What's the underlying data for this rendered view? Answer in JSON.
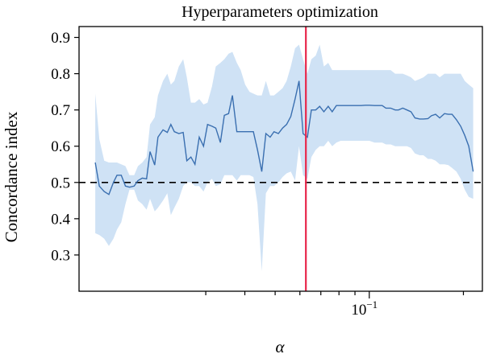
{
  "chart_data": {
    "type": "line",
    "title": "Hyperparameters optimization",
    "xlabel": "α",
    "ylabel": "Concordance index",
    "xscale": "log",
    "xlim": [
      0.0118,
      0.23
    ],
    "ylim": [
      0.2,
      0.93
    ],
    "yticks": [
      0.3,
      0.4,
      0.5,
      0.6,
      0.7,
      0.8,
      0.9
    ],
    "ytick_labels": [
      "0.3",
      "0.4",
      "0.5",
      "0.6",
      "0.7",
      "0.8",
      "0.9"
    ],
    "xticks_minor": [
      0.03,
      0.04,
      0.05,
      0.06,
      0.07,
      0.08,
      0.09,
      0.2
    ],
    "xticks_major": [
      0.1
    ],
    "xtick_major_labels": [
      "10^-1"
    ],
    "grid": false,
    "series": [
      {
        "x": [
          0.0133,
          0.0137,
          0.0142,
          0.0147,
          0.0152,
          0.0156,
          0.0161,
          0.0166,
          0.0171,
          0.0177,
          0.0182,
          0.0188,
          0.0194,
          0.0199,
          0.0206,
          0.0211,
          0.0219,
          0.0226,
          0.0232,
          0.0238,
          0.0246,
          0.0254,
          0.0261,
          0.0269,
          0.0277,
          0.0286,
          0.0295,
          0.0304,
          0.0314,
          0.0323,
          0.0334,
          0.0344,
          0.0355,
          0.0365,
          0.0377,
          0.0388,
          0.0401,
          0.0414,
          0.0426,
          0.0439,
          0.0453,
          0.0467,
          0.0482,
          0.0496,
          0.0512,
          0.0528,
          0.0544,
          0.0561,
          0.0579,
          0.0596,
          0.0614,
          0.0634,
          0.0653,
          0.0674,
          0.0694,
          0.0716,
          0.0739,
          0.0761,
          0.0785,
          0.081,
          0.0835,
          0.0859,
          0.0887,
          0.0914,
          0.0942,
          0.0972,
          0.1,
          0.104,
          0.107,
          0.11,
          0.113,
          0.117,
          0.121,
          0.124,
          0.128,
          0.132,
          0.136,
          0.14,
          0.145,
          0.149,
          0.154,
          0.158,
          0.163,
          0.168,
          0.174,
          0.179,
          0.184,
          0.19,
          0.196,
          0.202,
          0.208,
          0.215
        ],
        "mean": [
          0.555,
          0.49,
          0.475,
          0.467,
          0.5,
          0.52,
          0.52,
          0.49,
          0.487,
          0.49,
          0.505,
          0.512,
          0.51,
          0.585,
          0.548,
          0.625,
          0.645,
          0.638,
          0.66,
          0.64,
          0.635,
          0.638,
          0.56,
          0.57,
          0.55,
          0.625,
          0.6,
          0.66,
          0.655,
          0.65,
          0.61,
          0.685,
          0.69,
          0.74,
          0.64,
          0.64,
          0.64,
          0.64,
          0.64,
          0.59,
          0.53,
          0.635,
          0.625,
          0.64,
          0.635,
          0.65,
          0.66,
          0.682,
          0.73,
          0.78,
          0.635,
          0.625,
          0.7,
          0.7,
          0.71,
          0.695,
          0.71,
          0.695,
          0.712,
          0.712,
          0.712,
          0.712,
          0.712,
          0.712,
          0.712,
          0.713,
          0.713,
          0.712,
          0.712,
          0.712,
          0.705,
          0.705,
          0.7,
          0.7,
          0.705,
          0.7,
          0.695,
          0.678,
          0.675,
          0.675,
          0.676,
          0.684,
          0.688,
          0.678,
          0.69,
          0.688,
          0.688,
          0.673,
          0.655,
          0.63,
          0.6,
          0.53
        ],
        "lower": [
          0.36,
          0.355,
          0.345,
          0.325,
          0.345,
          0.37,
          0.39,
          0.44,
          0.48,
          0.48,
          0.45,
          0.44,
          0.425,
          0.455,
          0.42,
          0.43,
          0.45,
          0.47,
          0.41,
          0.43,
          0.455,
          0.49,
          0.5,
          0.5,
          0.49,
          0.49,
          0.475,
          0.5,
          0.51,
          0.49,
          0.495,
          0.52,
          0.52,
          0.52,
          0.505,
          0.52,
          0.52,
          0.52,
          0.515,
          0.44,
          0.255,
          0.47,
          0.49,
          0.49,
          0.5,
          0.515,
          0.525,
          0.53,
          0.505,
          0.6,
          0.52,
          0.51,
          0.57,
          0.59,
          0.6,
          0.6,
          0.615,
          0.6,
          0.61,
          0.615,
          0.615,
          0.615,
          0.615,
          0.615,
          0.615,
          0.615,
          0.615,
          0.61,
          0.61,
          0.61,
          0.605,
          0.605,
          0.6,
          0.6,
          0.6,
          0.6,
          0.595,
          0.58,
          0.575,
          0.575,
          0.565,
          0.565,
          0.56,
          0.55,
          0.55,
          0.548,
          0.54,
          0.53,
          0.51,
          0.48,
          0.46,
          0.455
        ],
        "upper": [
          0.745,
          0.62,
          0.56,
          0.555,
          0.555,
          0.555,
          0.55,
          0.545,
          0.52,
          0.52,
          0.545,
          0.555,
          0.57,
          0.66,
          0.68,
          0.74,
          0.78,
          0.8,
          0.77,
          0.78,
          0.82,
          0.84,
          0.79,
          0.72,
          0.72,
          0.73,
          0.715,
          0.72,
          0.765,
          0.82,
          0.83,
          0.84,
          0.855,
          0.86,
          0.83,
          0.81,
          0.77,
          0.75,
          0.745,
          0.74,
          0.74,
          0.78,
          0.74,
          0.74,
          0.75,
          0.76,
          0.78,
          0.82,
          0.87,
          0.88,
          0.84,
          0.8,
          0.84,
          0.85,
          0.88,
          0.82,
          0.83,
          0.81,
          0.81,
          0.81,
          0.81,
          0.81,
          0.81,
          0.81,
          0.81,
          0.81,
          0.81,
          0.81,
          0.81,
          0.81,
          0.81,
          0.81,
          0.8,
          0.8,
          0.8,
          0.795,
          0.79,
          0.78,
          0.785,
          0.79,
          0.8,
          0.8,
          0.8,
          0.79,
          0.8,
          0.8,
          0.8,
          0.8,
          0.8,
          0.78,
          0.77,
          0.76
        ]
      }
    ],
    "hlines": [
      {
        "y": 0.5,
        "style": "dashed",
        "color": "#000000"
      }
    ],
    "vlines": [
      {
        "x": 0.0627,
        "style": "solid",
        "color": "#e8274b"
      }
    ],
    "colors": {
      "mean": "#3a6fb0",
      "band": "#cfe2f5",
      "optimum": "#e8274b"
    }
  }
}
